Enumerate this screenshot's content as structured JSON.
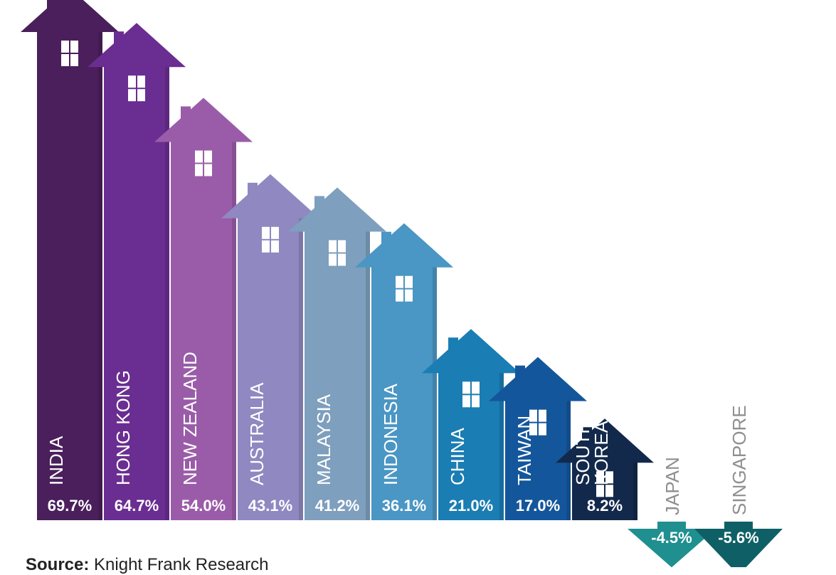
{
  "chart_data": {
    "type": "bar",
    "categories": [
      "INDIA",
      "HONG KONG",
      "NEW ZEALAND",
      "AUSTRALIA",
      "MALAYSIA",
      "INDONESIA",
      "CHINA",
      "TAIWAN",
      "SOUTH KOREA",
      "JAPAN",
      "SINGAPORE"
    ],
    "values": [
      69.7,
      64.7,
      54.0,
      43.1,
      41.2,
      36.1,
      21.0,
      17.0,
      8.2,
      -4.5,
      -5.6
    ],
    "value_labels": [
      "69.7%",
      "64.7%",
      "54.0%",
      "43.1%",
      "41.2%",
      "36.1%",
      "21.0%",
      "17.0%",
      "8.2%",
      "-4.5%",
      "-5.6%"
    ],
    "colors": [
      "#4a1f5c",
      "#6a2d91",
      "#9a5ca8",
      "#8f88c1",
      "#7e9fbd",
      "#4a96c4",
      "#1a7db3",
      "#14569b",
      "#13294b",
      "#1f8f8f",
      "#0f6066"
    ],
    "title": "",
    "xlabel": "",
    "ylabel": ""
  },
  "source": {
    "prefix": "Source:",
    "text": "Knight Frank Research"
  }
}
